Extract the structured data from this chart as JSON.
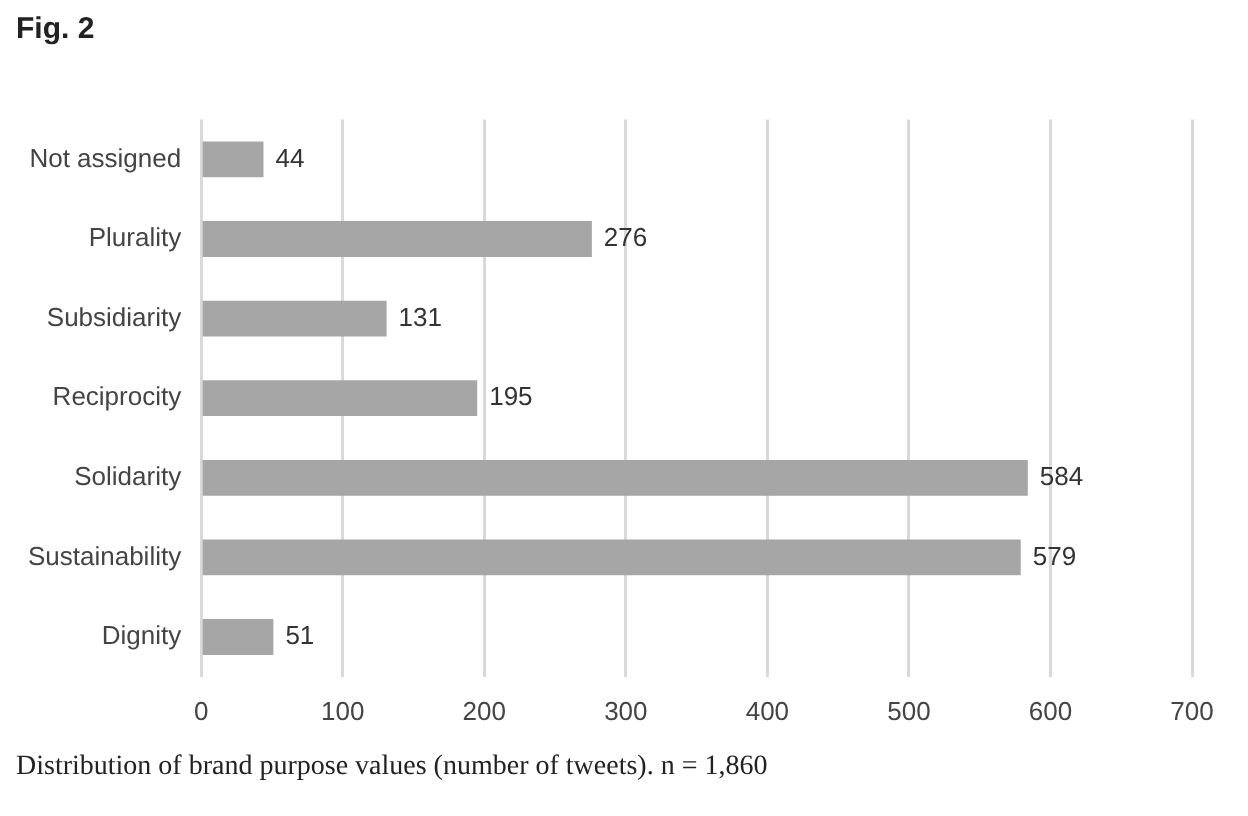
{
  "chart_data": {
    "type": "bar",
    "orientation": "horizontal",
    "title": "Fig. 2",
    "categories": [
      "Not assigned",
      "Plurality",
      "Subsidiarity",
      "Reciprocity",
      "Solidarity",
      "Sustainability",
      "Dignity"
    ],
    "values": [
      44,
      276,
      131,
      195,
      584,
      579,
      51
    ],
    "color": "#a6a6a6",
    "xlim": [
      0,
      700
    ],
    "xticks": [
      0,
      100,
      200,
      300,
      400,
      500,
      600,
      700
    ],
    "grid": "x",
    "data_labels": true,
    "annotations": [
      "Distribution of brand purpose values (number of tweets). n = 1,860"
    ]
  }
}
